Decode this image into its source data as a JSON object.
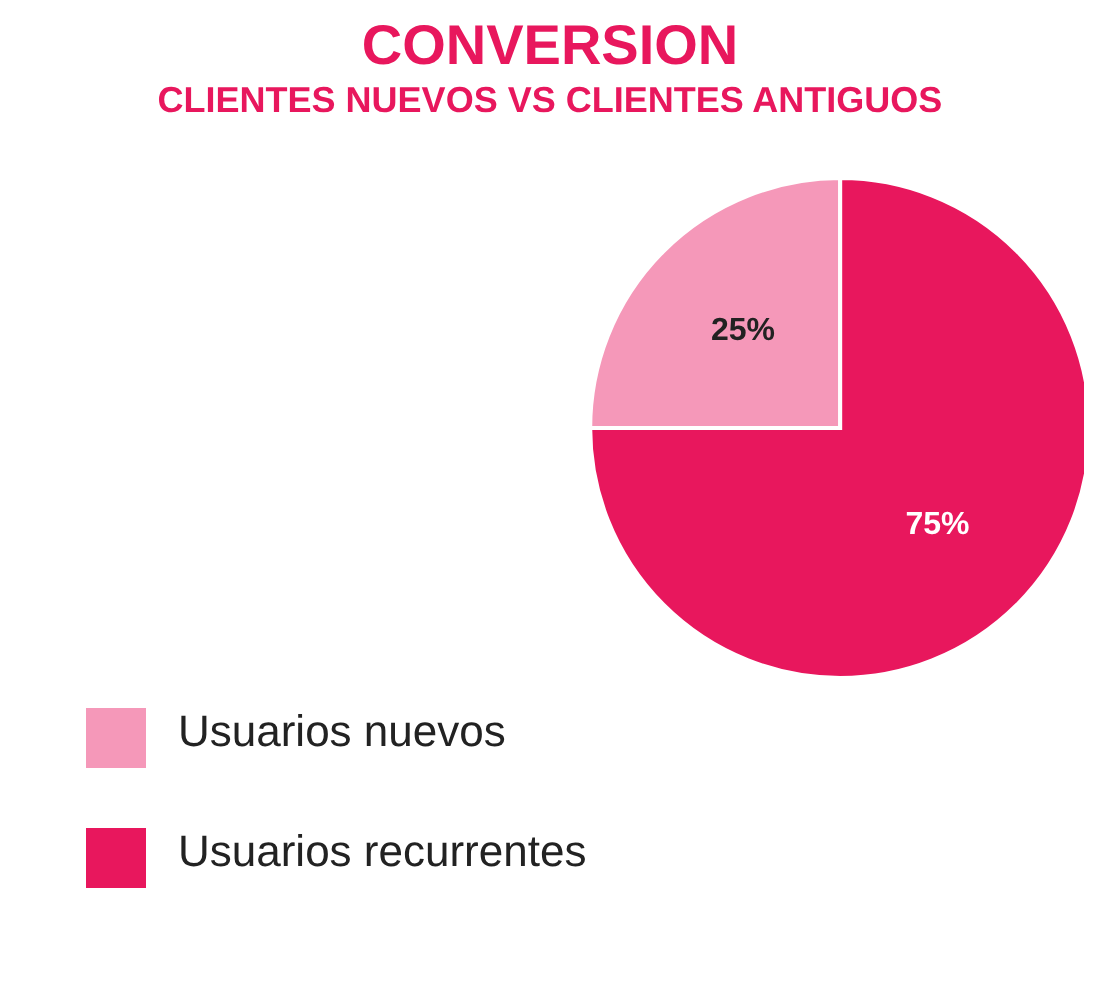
{
  "chart_data": {
    "type": "pie",
    "title": "CONVERSION",
    "subtitle": "CLIENTES NUEVOS VS CLIENTES ANTIGUOS",
    "categories": [
      "Usuarios nuevos",
      "Usuarios recurrentes"
    ],
    "values": [
      25,
      75
    ],
    "colors": [
      "#f598b9",
      "#e8175d"
    ],
    "value_labels": [
      "25%",
      "75%"
    ],
    "legend": "bottom left"
  }
}
